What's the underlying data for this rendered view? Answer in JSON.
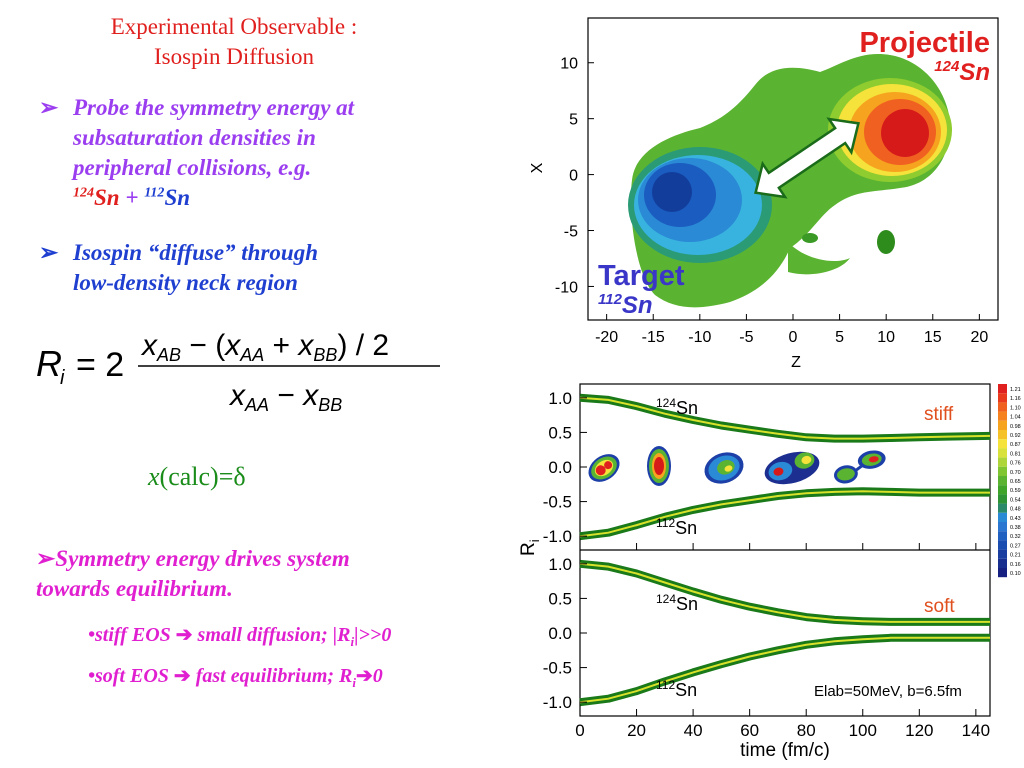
{
  "title": {
    "line1": "Experimental Observable :",
    "line2": "Isospin Diffusion"
  },
  "bullets": {
    "b1_l1": "Probe the symmetry energy at",
    "b1_l2": "subsaturation densities in",
    "b1_l3": "peripheral collisions, e.g.",
    "b1_sn124_mass": "124",
    "b1_sn124": "Sn",
    "b1_plus": " + ",
    "b1_sn112_mass": "112",
    "b1_sn112": "Sn",
    "b2_l1": "Isospin “diffuse” through",
    "b2_l2": "low-density neck region"
  },
  "formula": {
    "lhs": "R",
    "lhs_sub": "i",
    "eq": "= 2",
    "numerator": "x_AB − (x_AA + x_BB) / 2",
    "denominator": "x_AA − x_BB"
  },
  "calc": {
    "x": "x",
    "rest": "(calc)=δ"
  },
  "symmetry": {
    "line1": "Symmetry energy drives system",
    "line2": "towards equilibrium.",
    "eos_stiff_a": "•stiff EOS ",
    "eos_stiff_b": " small diffusion; |R",
    "eos_stiff_sub": "i",
    "eos_stiff_c": "|>>0",
    "eos_soft_a": "•soft EOS ",
    "eos_soft_b": " fast equilibrium; R",
    "eos_soft_sub": "i",
    "eos_soft_c": "0"
  },
  "contour_plot": {
    "projectile_label": "Projectile",
    "projectile_mass": "124",
    "projectile_sn": "Sn",
    "target_label": "Target",
    "target_mass": "112",
    "target_sn": "Sn",
    "xlabel": "Z",
    "ylabel": "X",
    "x_ticks": [
      "-20",
      "-15",
      "-10",
      "-5",
      "0",
      "5",
      "10",
      "15",
      "20"
    ],
    "y_ticks": [
      "10",
      "5",
      "0",
      "-5",
      "-10"
    ]
  },
  "ri_plot": {
    "ylabel": "R",
    "ylabel_sub": "i",
    "xlabel": "time (fm/c)",
    "x_ticks": [
      "0",
      "20",
      "40",
      "60",
      "80",
      "100",
      "120",
      "140"
    ],
    "y_ticks": [
      "1.0",
      "0.5",
      "0.0",
      "-0.5",
      "-1.0"
    ],
    "top_stiff": "stiff",
    "top_124": "124",
    "top_124sn": "Sn",
    "top_112": "112",
    "top_112sn": "Sn",
    "bot_soft": "soft",
    "bot_124": "124",
    "bot_124sn": "Sn",
    "bot_112": "112",
    "bot_112sn": "Sn",
    "annotation": "Elab=50MeV, b=6.5fm",
    "colorbar_ticks": [
      "1.21",
      "1.16",
      "1.10",
      "1.04",
      "0.98",
      "0.92",
      "0.87",
      "0.81",
      "0.76",
      "0.70",
      "0.65",
      "0.59",
      "0.54",
      "0.48",
      "0.43",
      "0.38",
      "0.32",
      "0.27",
      "0.21",
      "0.16",
      "0.10"
    ]
  },
  "chart_data": [
    {
      "type": "line",
      "title": "",
      "xlabel": "time (fm/c)",
      "ylabel": "Ri",
      "xlim": [
        0,
        145
      ],
      "ylim": [
        -1.2,
        1.2
      ],
      "panel": "stiff",
      "series": [
        {
          "name": "124Sn",
          "x": [
            0,
            10,
            20,
            30,
            40,
            50,
            60,
            70,
            80,
            90,
            100,
            110,
            120,
            130,
            145
          ],
          "values": [
            1.0,
            0.97,
            0.88,
            0.77,
            0.68,
            0.6,
            0.54,
            0.48,
            0.43,
            0.41,
            0.41,
            0.42,
            0.43,
            0.44,
            0.45
          ]
        },
        {
          "name": "112Sn",
          "x": [
            0,
            10,
            20,
            30,
            40,
            50,
            60,
            70,
            80,
            90,
            100,
            110,
            120,
            130,
            145
          ],
          "values": [
            -1.0,
            -0.95,
            -0.84,
            -0.72,
            -0.62,
            -0.54,
            -0.48,
            -0.42,
            -0.38,
            -0.36,
            -0.35,
            -0.36,
            -0.37,
            -0.37,
            -0.37
          ]
        }
      ]
    },
    {
      "type": "line",
      "title": "",
      "xlabel": "time (fm/c)",
      "ylabel": "Ri",
      "xlim": [
        0,
        145
      ],
      "ylim": [
        -1.2,
        1.2
      ],
      "panel": "soft",
      "series": [
        {
          "name": "124Sn",
          "x": [
            0,
            10,
            20,
            30,
            40,
            50,
            60,
            70,
            80,
            90,
            100,
            110,
            120,
            130,
            145
          ],
          "values": [
            1.0,
            0.96,
            0.86,
            0.73,
            0.6,
            0.48,
            0.38,
            0.3,
            0.23,
            0.19,
            0.17,
            0.16,
            0.16,
            0.16,
            0.16
          ]
        },
        {
          "name": "112Sn",
          "x": [
            0,
            10,
            20,
            30,
            40,
            50,
            60,
            70,
            80,
            90,
            100,
            110,
            120,
            130,
            145
          ],
          "values": [
            -1.0,
            -0.95,
            -0.84,
            -0.7,
            -0.57,
            -0.45,
            -0.34,
            -0.25,
            -0.17,
            -0.12,
            -0.09,
            -0.07,
            -0.07,
            -0.07,
            -0.07
          ]
        }
      ]
    }
  ]
}
